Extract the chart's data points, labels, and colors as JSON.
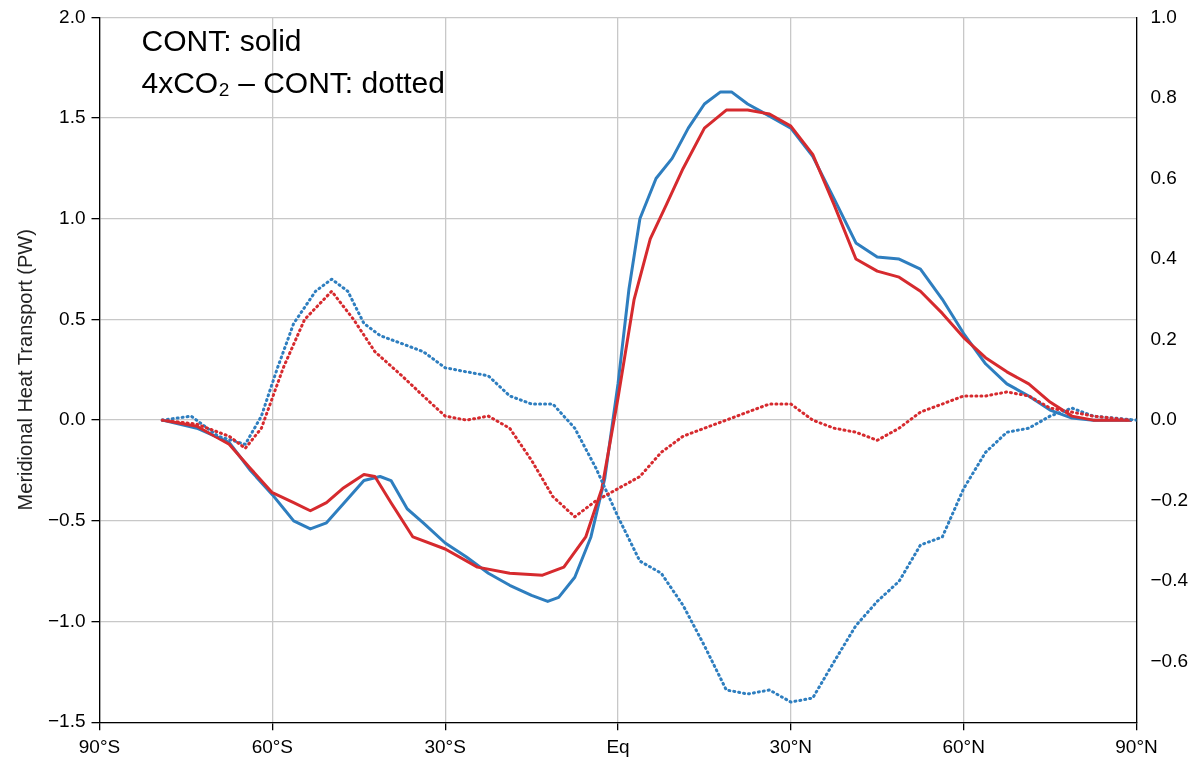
{
  "chart_data": {
    "type": "line",
    "ylabel": "Meridional Heat Transport (PW)",
    "annotations": [
      "CONT: solid",
      "4xCO₂ – CONT: dotted"
    ],
    "xlim": [
      -90,
      90
    ],
    "xticks": [
      {
        "value": -90,
        "label": "90°S"
      },
      {
        "value": -60,
        "label": "60°S"
      },
      {
        "value": -30,
        "label": "30°S"
      },
      {
        "value": 0,
        "label": "Eq"
      },
      {
        "value": 30,
        "label": "30°N"
      },
      {
        "value": 60,
        "label": "60°N"
      },
      {
        "value": 90,
        "label": "90°N"
      }
    ],
    "ylim": [
      -1.5,
      2
    ],
    "yticks": [
      {
        "value": -1.5,
        "label": "−1.5"
      },
      {
        "value": -1,
        "label": "−1.0"
      },
      {
        "value": -0.5,
        "label": "−0.5"
      },
      {
        "value": 0,
        "label": "0.0"
      },
      {
        "value": 0.5,
        "label": "0.5"
      },
      {
        "value": 1,
        "label": "1.0"
      },
      {
        "value": 1.5,
        "label": "1.5"
      },
      {
        "value": 2,
        "label": "2.0"
      }
    ],
    "y2lim": [
      -0.75,
      1
    ],
    "y2ticks": [
      {
        "value": -0.6,
        "label": "−0.6"
      },
      {
        "value": -0.4,
        "label": "−0.4"
      },
      {
        "value": -0.2,
        "label": "−0.2"
      },
      {
        "value": 0,
        "label": "0.0"
      },
      {
        "value": 0.2,
        "label": "0.2"
      },
      {
        "value": 0.4,
        "label": "0.4"
      },
      {
        "value": 0.6,
        "label": "0.6"
      },
      {
        "value": 0.8,
        "label": "0.8"
      },
      {
        "value": 1,
        "label": "1.0"
      }
    ],
    "grid": true,
    "legend": false,
    "marker": "none",
    "series": [
      {
        "color": "#2e7ebf",
        "line_style": "solid",
        "x": [
          -79.1,
          -73.1,
          -67.5,
          -63.8,
          -60,
          -56.3,
          -53.4,
          -50.6,
          -46.9,
          -44.1,
          -41.3,
          -39.4,
          -36.6,
          -33.8,
          -30,
          -26.3,
          -22.5,
          -18.8,
          -15,
          -12.2,
          -10.3,
          -7.5,
          -4.7,
          -2.3,
          0,
          1.9,
          3.8,
          6.6,
          9.4,
          12.2,
          15,
          17.8,
          19.7,
          22.5,
          26.3,
          30,
          33.8,
          37.5,
          41.3,
          45,
          48.8,
          52.5,
          56.3,
          60,
          63.8,
          67.5,
          71.3,
          75,
          78.8,
          82.5,
          89
        ],
        "values": [
          0,
          -0.04,
          -0.11,
          -0.25,
          -0.37,
          -0.5,
          -0.54,
          -0.51,
          -0.39,
          -0.3,
          -0.28,
          -0.3,
          -0.44,
          -0.51,
          -0.61,
          -0.68,
          -0.76,
          -0.82,
          -0.87,
          -0.9,
          -0.88,
          -0.78,
          -0.58,
          -0.29,
          0.18,
          0.65,
          1.0,
          1.2,
          1.3,
          1.45,
          1.57,
          1.63,
          1.63,
          1.57,
          1.51,
          1.45,
          1.31,
          1.1,
          0.88,
          0.81,
          0.8,
          0.75,
          0.6,
          0.43,
          0.28,
          0.18,
          0.12,
          0.05,
          0.01,
          0,
          0
        ]
      },
      {
        "color": "#d62a2e",
        "line_style": "solid",
        "x": [
          -79.1,
          -73.1,
          -67.5,
          -63.8,
          -60,
          -56.3,
          -53.4,
          -50.6,
          -47.8,
          -44.1,
          -42.2,
          -39.4,
          -35.6,
          -30,
          -24.4,
          -18.8,
          -13.1,
          -9.4,
          -5.6,
          -2.8,
          0,
          2.8,
          5.6,
          8.4,
          11.3,
          15,
          18.8,
          22.5,
          26.3,
          30,
          33.8,
          37.5,
          41.3,
          45,
          48.8,
          52.5,
          56.3,
          60,
          63.8,
          67.5,
          71.3,
          75,
          78.8,
          82.5,
          89
        ],
        "values": [
          0,
          -0.03,
          -0.12,
          -0.24,
          -0.36,
          -0.41,
          -0.45,
          -0.41,
          -0.34,
          -0.27,
          -0.28,
          -0.41,
          -0.58,
          -0.64,
          -0.73,
          -0.76,
          -0.77,
          -0.73,
          -0.58,
          -0.34,
          0.11,
          0.6,
          0.9,
          1.07,
          1.25,
          1.45,
          1.54,
          1.54,
          1.52,
          1.46,
          1.32,
          1.07,
          0.8,
          0.74,
          0.71,
          0.64,
          0.53,
          0.41,
          0.31,
          0.24,
          0.18,
          0.09,
          0.02,
          0,
          0
        ]
      },
      {
        "color": "#2e7ebf",
        "line_style": "dotted",
        "axis": "y2",
        "x": [
          -79.1,
          -74.1,
          -69.4,
          -64.7,
          -61.9,
          -59.1,
          -56.3,
          -52.5,
          -49.7,
          -46.9,
          -44.1,
          -41.3,
          -37.5,
          -33.8,
          -30,
          -26.3,
          -22.5,
          -18.8,
          -15,
          -11.3,
          -7.5,
          -3.8,
          0,
          3.8,
          7.5,
          11.3,
          15,
          18.8,
          22.5,
          26.3,
          30,
          33.8,
          37.5,
          41.3,
          45,
          48.8,
          52.5,
          56.3,
          60,
          63.8,
          67.5,
          71.3,
          75,
          78.8,
          82.5,
          90
        ],
        "values": [
          0,
          0.01,
          -0.04,
          -0.06,
          0.01,
          0.13,
          0.24,
          0.32,
          0.35,
          0.32,
          0.24,
          0.21,
          0.19,
          0.17,
          0.13,
          0.12,
          0.11,
          0.06,
          0.04,
          0.04,
          -0.02,
          -0.12,
          -0.24,
          -0.35,
          -0.38,
          -0.46,
          -0.56,
          -0.67,
          -0.68,
          -0.67,
          -0.7,
          -0.69,
          -0.6,
          -0.51,
          -0.45,
          -0.4,
          -0.31,
          -0.29,
          -0.17,
          -0.08,
          -0.03,
          -0.02,
          0.01,
          0.03,
          0.01,
          0
        ]
      },
      {
        "color": "#d62a2e",
        "line_style": "dotted",
        "axis": "y2",
        "x": [
          -79.1,
          -73.1,
          -67.5,
          -64.7,
          -61.9,
          -58.1,
          -54.4,
          -49.7,
          -45.9,
          -42.2,
          -37.5,
          -33.8,
          -30,
          -26.3,
          -22.5,
          -18.8,
          -15,
          -11.3,
          -7.5,
          -3.8,
          0,
          3.8,
          7.5,
          11.3,
          15,
          18.8,
          22.5,
          26.3,
          30,
          33.8,
          37.5,
          41.3,
          45,
          48.8,
          52.5,
          56.3,
          60,
          63.8,
          67.5,
          71.3,
          75,
          78.8,
          82.5,
          89
        ],
        "values": [
          0,
          -0.01,
          -0.04,
          -0.07,
          -0.02,
          0.13,
          0.25,
          0.32,
          0.25,
          0.17,
          0.11,
          0.06,
          0.01,
          0,
          0.01,
          -0.02,
          -0.1,
          -0.19,
          -0.24,
          -0.2,
          -0.17,
          -0.14,
          -0.08,
          -0.04,
          -0.02,
          0,
          0.02,
          0.04,
          0.04,
          0,
          -0.02,
          -0.03,
          -0.05,
          -0.02,
          0.02,
          0.04,
          0.06,
          0.06,
          0.07,
          0.06,
          0.03,
          0.02,
          0.01,
          0
        ]
      }
    ]
  }
}
